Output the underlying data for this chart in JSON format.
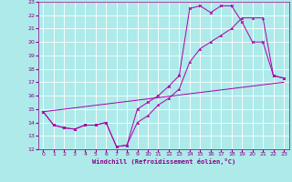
{
  "xlabel": "Windchill (Refroidissement éolien,°C)",
  "bg_color": "#aeeaea",
  "grid_color": "#ffffff",
  "line_color": "#aa00aa",
  "xlim": [
    -0.5,
    23.5
  ],
  "ylim": [
    12,
    23
  ],
  "xticks": [
    0,
    1,
    2,
    3,
    4,
    5,
    6,
    7,
    8,
    9,
    10,
    11,
    12,
    13,
    14,
    15,
    16,
    17,
    18,
    19,
    20,
    21,
    22,
    23
  ],
  "yticks": [
    12,
    13,
    14,
    15,
    16,
    17,
    18,
    19,
    20,
    21,
    22,
    23
  ],
  "line1_x": [
    0,
    1,
    2,
    3,
    4,
    5,
    6,
    7,
    8,
    9,
    10,
    11,
    12,
    13,
    14,
    15,
    16,
    17,
    18,
    19,
    20,
    21,
    22,
    23
  ],
  "line1_y": [
    14.8,
    13.8,
    13.6,
    13.5,
    13.8,
    13.8,
    14.0,
    12.2,
    12.3,
    15.0,
    15.5,
    16.0,
    16.7,
    17.5,
    22.5,
    22.7,
    22.2,
    22.7,
    22.7,
    21.5,
    20.0,
    20.0,
    17.5,
    17.3
  ],
  "line2_x": [
    0,
    1,
    2,
    3,
    4,
    5,
    6,
    7,
    8,
    9,
    10,
    11,
    12,
    13,
    14,
    15,
    16,
    17,
    18,
    19,
    20,
    21,
    22,
    23
  ],
  "line2_y": [
    14.8,
    13.8,
    13.6,
    13.5,
    13.8,
    13.8,
    14.0,
    12.2,
    12.3,
    14.0,
    14.5,
    15.3,
    15.8,
    16.5,
    18.5,
    19.5,
    20.0,
    20.5,
    21.0,
    21.8,
    21.8,
    21.8,
    17.5,
    17.3
  ],
  "line3_x": [
    0,
    23
  ],
  "line3_y": [
    14.8,
    17.0
  ]
}
